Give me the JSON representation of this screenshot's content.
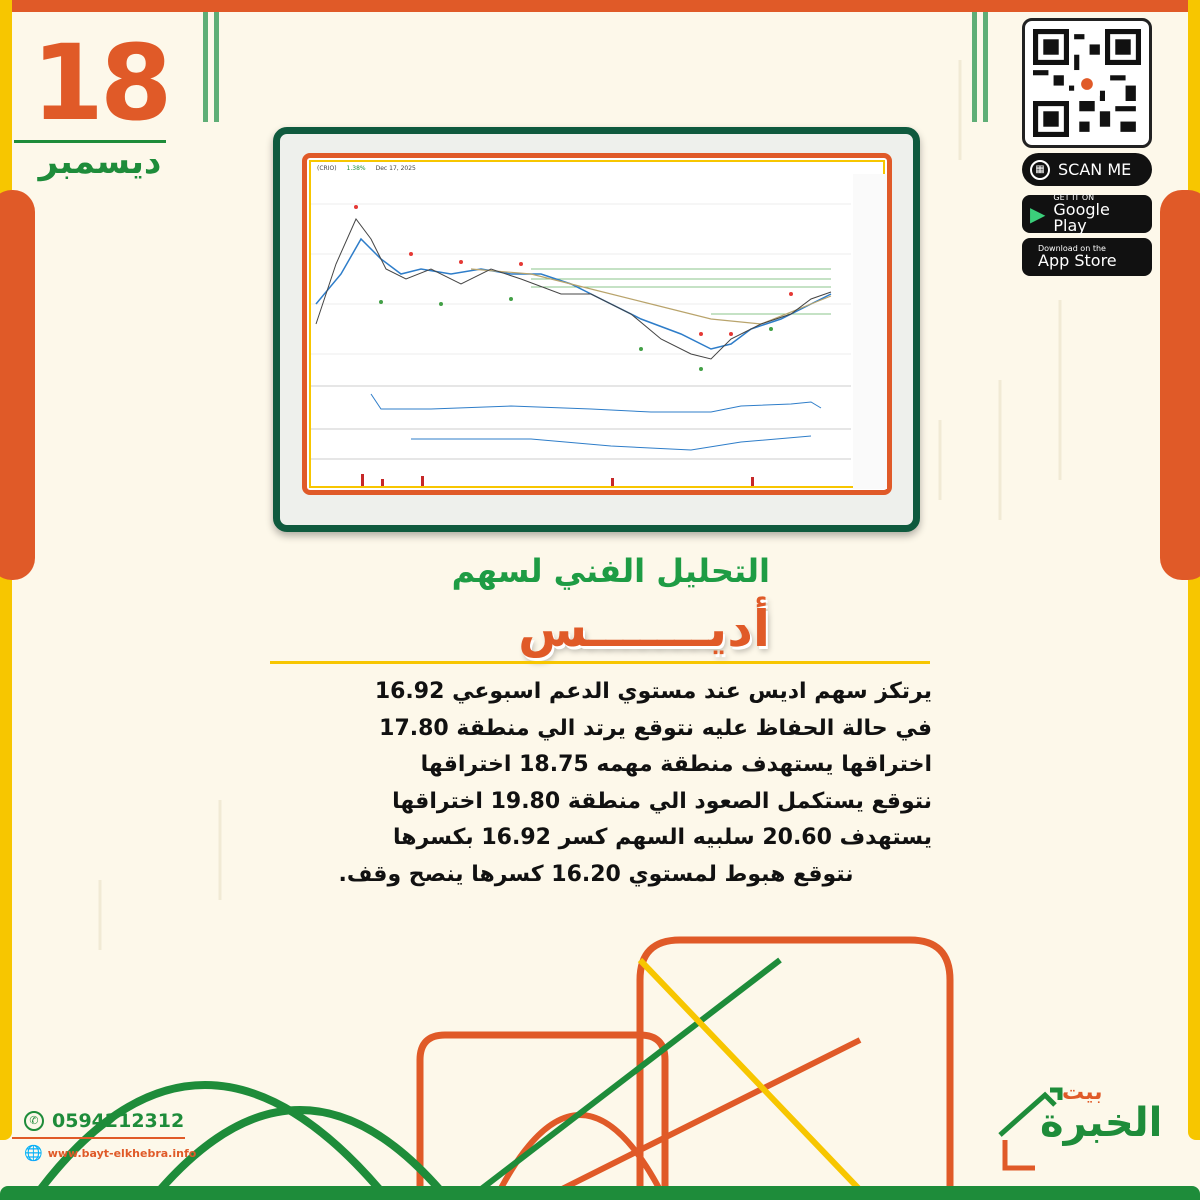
{
  "date": {
    "day": "18",
    "month": "ديسمبر"
  },
  "qr": {
    "label": "SCAN ME"
  },
  "stores": [
    {
      "small": "GET IT ON",
      "name": "Google Play",
      "icon": "google-play-icon"
    },
    {
      "small": "Download on the",
      "name": "App Store",
      "icon": "apple-icon"
    }
  ],
  "chart_header": {
    "symbol": "(CRIO)",
    "change": "1.38%",
    "date": "Dec 17, 2025"
  },
  "headline": {
    "title": "التحليل الفني لسهم",
    "stock": "أديـــــــس"
  },
  "analysis": [
    "يرتكز سهم اديس عند مستوي الدعم اسبوعي 16.92",
    "في حالة الحفاظ عليه نتوقع يرتد الي منطقة 17.80",
    "اختراقها يستهدف منطقة مهمه 18.75 اختراقها",
    "نتوقع يستكمل الصعود الي منطقة 19.80 اختراقها",
    "يستهدف 20.60 سلبيه السهم كسر 16.92 بكسرها",
    "نتوقع هبوط لمستوي 16.20 كسرها ينصح وقف."
  ],
  "contact": {
    "phone": "0594212312",
    "website": "www.bayt-elkhebra.info"
  },
  "brand": {
    "top": "بيت",
    "main": "الخبرة"
  },
  "colors": {
    "orange": "#e05a28",
    "green": "#1e8c3a",
    "yellow": "#f7c600",
    "background": "#fdf8ea"
  }
}
